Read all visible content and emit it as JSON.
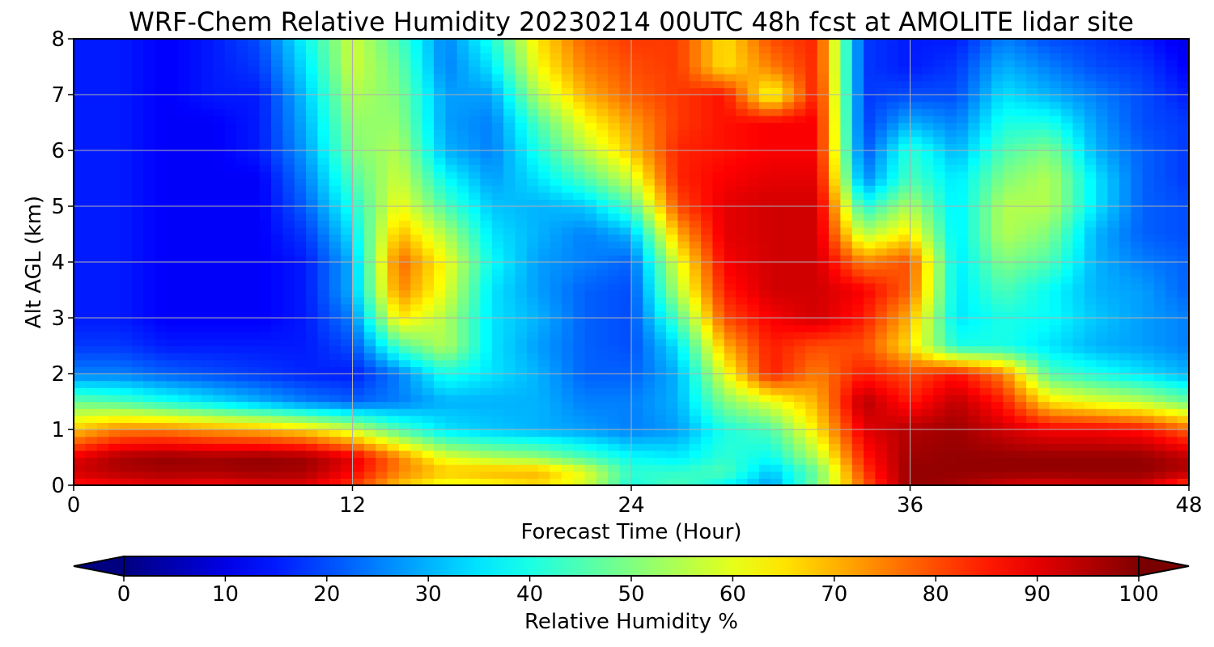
{
  "chart_data": {
    "type": "heatmap",
    "title": "WRF-Chem Relative Humidity 20230214 00UTC 48h fcst at AMOLITE lidar site",
    "xlabel": "Forecast Time (Hour)",
    "ylabel": "Alt AGL (km)",
    "xlim": [
      0,
      48
    ],
    "ylim": [
      0,
      8
    ],
    "xticks": [
      0,
      12,
      24,
      36,
      48
    ],
    "yticks": [
      0,
      1,
      2,
      3,
      4,
      5,
      6,
      7,
      8
    ],
    "grid": true,
    "colormap": "jet",
    "colorbar": {
      "label": "Relative Humidity %",
      "range": [
        0,
        100
      ],
      "ticks": [
        0,
        10,
        20,
        30,
        40,
        50,
        60,
        70,
        80,
        90,
        100
      ],
      "extend": "both",
      "placement": "bottom"
    },
    "x_hours": [
      0,
      2,
      4,
      6,
      8,
      10,
      12,
      14,
      16,
      18,
      20,
      22,
      24,
      26,
      28,
      30,
      32,
      34,
      36,
      38,
      40,
      42,
      44,
      46,
      48
    ],
    "z_km": [
      0,
      0.25,
      0.5,
      1,
      1.5,
      2,
      2.5,
      3,
      3.5,
      4,
      4.5,
      5,
      5.5,
      6,
      6.5,
      7,
      7.5,
      8
    ],
    "values": [
      [
        85,
        88,
        90,
        88,
        90,
        90,
        82,
        68,
        60,
        62,
        66,
        58,
        40,
        45,
        38,
        28,
        50,
        78,
        98,
        96,
        92,
        90,
        92,
        92,
        80
      ],
      [
        92,
        95,
        96,
        96,
        97,
        96,
        88,
        75,
        68,
        70,
        70,
        60,
        42,
        42,
        45,
        32,
        48,
        82,
        98,
        98,
        98,
        98,
        98,
        98,
        95
      ],
      [
        90,
        96,
        98,
        97,
        98,
        97,
        90,
        75,
        60,
        55,
        52,
        45,
        38,
        36,
        42,
        38,
        55,
        85,
        97,
        98,
        98,
        98,
        98,
        98,
        94
      ],
      [
        68,
        75,
        75,
        72,
        70,
        66,
        58,
        45,
        35,
        32,
        30,
        28,
        25,
        28,
        40,
        45,
        65,
        90,
        95,
        97,
        92,
        88,
        88,
        86,
        78
      ],
      [
        48,
        45,
        40,
        35,
        30,
        25,
        22,
        25,
        30,
        30,
        30,
        25,
        25,
        30,
        50,
        60,
        70,
        95,
        85,
        94,
        85,
        65,
        60,
        56,
        48
      ],
      [
        25,
        25,
        22,
        20,
        18,
        16,
        15,
        25,
        40,
        35,
        30,
        22,
        22,
        30,
        60,
        85,
        75,
        85,
        80,
        86,
        75,
        45,
        40,
        35,
        30
      ],
      [
        18,
        18,
        15,
        15,
        15,
        15,
        20,
        45,
        55,
        35,
        28,
        22,
        20,
        35,
        70,
        85,
        80,
        80,
        65,
        40,
        40,
        35,
        30,
        28,
        25
      ],
      [
        15,
        15,
        12,
        12,
        12,
        15,
        25,
        65,
        55,
        35,
        30,
        22,
        20,
        45,
        80,
        88,
        92,
        85,
        70,
        35,
        40,
        38,
        32,
        28,
        25
      ],
      [
        15,
        15,
        12,
        12,
        12,
        15,
        30,
        75,
        60,
        35,
        28,
        22,
        20,
        55,
        85,
        92,
        92,
        88,
        78,
        35,
        45,
        38,
        30,
        28,
        22
      ],
      [
        15,
        15,
        12,
        12,
        12,
        15,
        30,
        78,
        62,
        38,
        28,
        25,
        22,
        60,
        88,
        92,
        92,
        75,
        80,
        35,
        50,
        45,
        30,
        25,
        22
      ],
      [
        15,
        15,
        12,
        12,
        12,
        18,
        35,
        70,
        55,
        35,
        30,
        25,
        30,
        70,
        90,
        92,
        92,
        55,
        65,
        35,
        55,
        50,
        30,
        22,
        20
      ],
      [
        15,
        15,
        12,
        12,
        12,
        22,
        40,
        62,
        45,
        32,
        30,
        32,
        45,
        80,
        90,
        92,
        92,
        40,
        55,
        35,
        55,
        55,
        35,
        22,
        20
      ],
      [
        15,
        15,
        12,
        12,
        12,
        25,
        45,
        58,
        38,
        28,
        35,
        45,
        58,
        84,
        88,
        90,
        90,
        25,
        45,
        35,
        50,
        55,
        35,
        22,
        18
      ],
      [
        15,
        15,
        12,
        12,
        15,
        28,
        50,
        55,
        30,
        25,
        40,
        55,
        68,
        84,
        86,
        88,
        88,
        20,
        42,
        30,
        45,
        50,
        30,
        22,
        18
      ],
      [
        15,
        15,
        12,
        12,
        15,
        30,
        52,
        52,
        28,
        25,
        45,
        62,
        72,
        82,
        86,
        88,
        88,
        18,
        30,
        25,
        40,
        40,
        28,
        20,
        18
      ],
      [
        15,
        15,
        12,
        15,
        15,
        32,
        55,
        50,
        28,
        28,
        55,
        70,
        78,
        82,
        86,
        60,
        86,
        18,
        20,
        20,
        35,
        30,
        25,
        20,
        15
      ],
      [
        15,
        15,
        12,
        15,
        18,
        35,
        58,
        48,
        25,
        35,
        62,
        75,
        80,
        82,
        65,
        75,
        84,
        18,
        15,
        18,
        30,
        25,
        20,
        18,
        12
      ],
      [
        15,
        15,
        12,
        15,
        20,
        38,
        58,
        45,
        25,
        40,
        65,
        78,
        82,
        82,
        65,
        80,
        84,
        18,
        15,
        15,
        25,
        20,
        18,
        15,
        10
      ]
    ]
  }
}
